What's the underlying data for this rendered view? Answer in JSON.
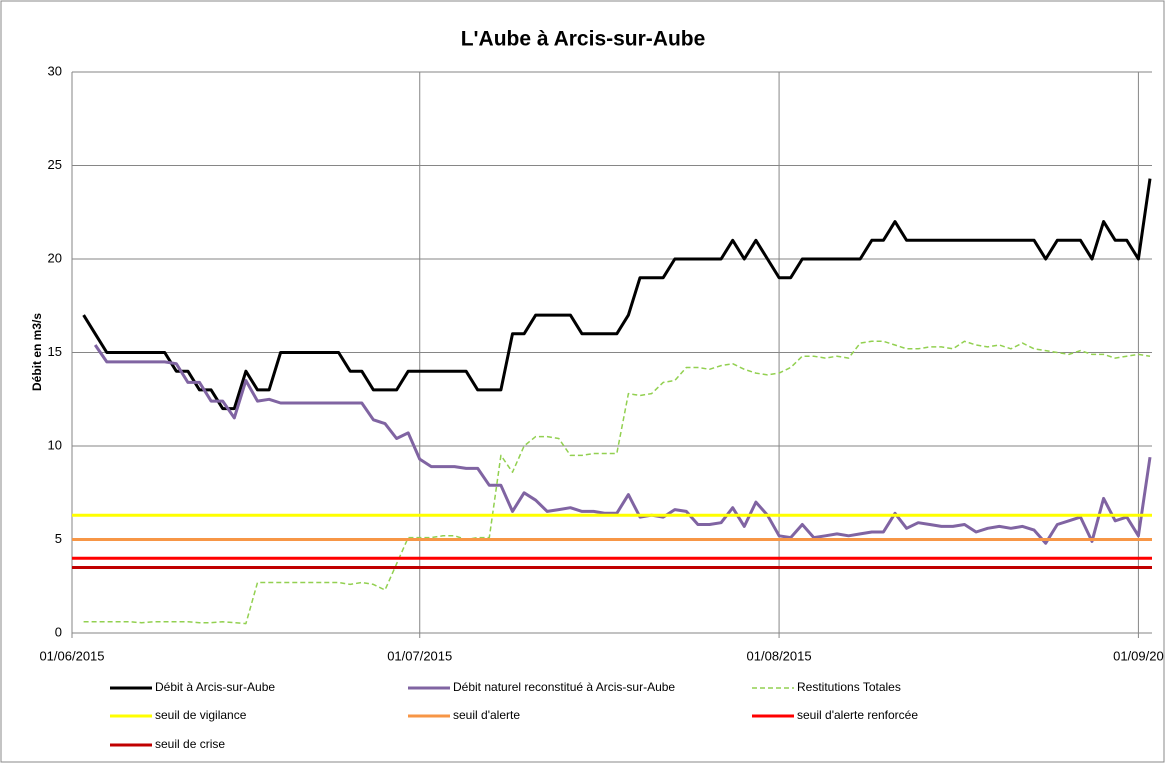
{
  "chart_data": {
    "type": "line",
    "title": "L'Aube à Arcis-sur-Aube",
    "y_label": "Débit en m3/s",
    "x": [
      "2015-06-01",
      "2015-06-02",
      "2015-06-03",
      "2015-06-04",
      "2015-06-05",
      "2015-06-06",
      "2015-06-07",
      "2015-06-08",
      "2015-06-09",
      "2015-06-10",
      "2015-06-11",
      "2015-06-12",
      "2015-06-13",
      "2015-06-14",
      "2015-06-15",
      "2015-06-16",
      "2015-06-17",
      "2015-06-18",
      "2015-06-19",
      "2015-06-20",
      "2015-06-21",
      "2015-06-22",
      "2015-06-23",
      "2015-06-24",
      "2015-06-25",
      "2015-06-26",
      "2015-06-27",
      "2015-06-28",
      "2015-06-29",
      "2015-06-30",
      "2015-07-01",
      "2015-07-02",
      "2015-07-03",
      "2015-07-04",
      "2015-07-05",
      "2015-07-06",
      "2015-07-07",
      "2015-07-08",
      "2015-07-09",
      "2015-07-10",
      "2015-07-11",
      "2015-07-12",
      "2015-07-13",
      "2015-07-14",
      "2015-07-15",
      "2015-07-16",
      "2015-07-17",
      "2015-07-18",
      "2015-07-19",
      "2015-07-20",
      "2015-07-21",
      "2015-07-22",
      "2015-07-23",
      "2015-07-24",
      "2015-07-25",
      "2015-07-26",
      "2015-07-27",
      "2015-07-28",
      "2015-07-29",
      "2015-07-30",
      "2015-07-31",
      "2015-08-01",
      "2015-08-02",
      "2015-08-03",
      "2015-08-04",
      "2015-08-05",
      "2015-08-06",
      "2015-08-07",
      "2015-08-08",
      "2015-08-09",
      "2015-08-10",
      "2015-08-11",
      "2015-08-12",
      "2015-08-13",
      "2015-08-14",
      "2015-08-15",
      "2015-08-16",
      "2015-08-17",
      "2015-08-18",
      "2015-08-19",
      "2015-08-20",
      "2015-08-21",
      "2015-08-22",
      "2015-08-23",
      "2015-08-24",
      "2015-08-25",
      "2015-08-26",
      "2015-08-27",
      "2015-08-28",
      "2015-08-29",
      "2015-08-30",
      "2015-08-31",
      "2015-09-01",
      "2015-09-02"
    ],
    "series": [
      {
        "name": "Débit à Arcis-sur-Aube",
        "color": "#000000",
        "values": [
          null,
          17,
          16,
          15,
          15,
          15,
          15,
          15,
          15,
          14,
          14,
          13,
          13,
          12,
          12,
          14,
          13,
          13,
          15,
          15,
          15,
          15,
          15,
          15,
          14,
          14,
          13,
          13,
          13,
          14,
          14,
          14,
          14,
          14,
          14,
          13,
          13,
          13,
          16,
          16,
          17,
          17,
          17,
          17,
          16,
          16,
          16,
          16,
          17,
          19,
          19,
          19,
          20,
          20,
          20,
          20,
          20,
          21,
          20,
          21,
          20,
          19,
          19,
          20,
          20,
          20,
          20,
          20,
          20,
          21,
          21,
          22,
          21,
          21,
          21,
          21,
          21,
          21,
          21,
          21,
          21,
          21,
          21,
          21,
          20,
          21,
          21,
          21,
          20,
          22,
          21,
          21,
          20,
          24.3
        ]
      },
      {
        "name": "Débit naturel  reconstitué à Arcis-sur-Aube",
        "color": "#8064a2",
        "values": [
          null,
          null,
          15.4,
          14.5,
          14.5,
          14.5,
          14.5,
          14.5,
          14.5,
          14.4,
          13.4,
          13.4,
          12.4,
          12.4,
          11.5,
          13.5,
          12.4,
          12.5,
          12.3,
          12.3,
          12.3,
          12.3,
          12.3,
          12.3,
          12.3,
          12.3,
          11.4,
          11.2,
          10.4,
          10.7,
          9.3,
          8.9,
          8.9,
          8.9,
          8.8,
          8.8,
          7.9,
          7.9,
          6.5,
          7.5,
          7.1,
          6.5,
          6.6,
          6.7,
          6.5,
          6.5,
          6.4,
          6.4,
          7.4,
          6.2,
          6.3,
          6.2,
          6.6,
          6.5,
          5.8,
          5.8,
          5.9,
          6.7,
          5.7,
          7.0,
          6.3,
          5.2,
          5.1,
          5.8,
          5.1,
          5.2,
          5.3,
          5.2,
          5.3,
          5.4,
          5.4,
          6.4,
          5.6,
          5.9,
          5.8,
          5.7,
          5.7,
          5.8,
          5.4,
          5.6,
          5.7,
          5.6,
          5.7,
          5.5,
          4.8,
          5.8,
          6.0,
          6.2,
          4.9,
          7.2,
          6.0,
          6.2,
          5.2,
          9.4
        ]
      },
      {
        "name": "Restitutions Totales",
        "color": "#92d050",
        "dashed": true,
        "values": [
          null,
          0.6,
          0.6,
          0.6,
          0.6,
          0.6,
          0.55,
          0.6,
          0.6,
          0.6,
          0.6,
          0.55,
          0.55,
          0.6,
          0.55,
          0.5,
          2.7,
          2.7,
          2.7,
          2.7,
          2.7,
          2.7,
          2.7,
          2.7,
          2.6,
          2.7,
          2.6,
          2.3,
          3.7,
          5.1,
          5.1,
          5.1,
          5.2,
          5.2,
          5.0,
          5.1,
          5.1,
          9.5,
          8.6,
          10.0,
          10.5,
          10.5,
          10.4,
          9.5,
          9.5,
          9.6,
          9.6,
          9.6,
          12.8,
          12.7,
          12.8,
          13.4,
          13.5,
          14.2,
          14.2,
          14.1,
          14.3,
          14.4,
          14.1,
          13.9,
          13.8,
          13.9,
          14.2,
          14.8,
          14.8,
          14.7,
          14.8,
          14.7,
          15.5,
          15.6,
          15.6,
          15.4,
          15.2,
          15.2,
          15.3,
          15.3,
          15.2,
          15.6,
          15.4,
          15.3,
          15.4,
          15.2,
          15.5,
          15.2,
          15.1,
          15.0,
          14.9,
          15.1,
          14.9,
          14.9,
          14.7,
          14.8,
          14.9,
          14.8
        ]
      },
      {
        "name": "seuil de vigilance",
        "color": "#ffff00",
        "value": 6.3
      },
      {
        "name": "seuil d'alerte",
        "color": "#f79646",
        "value": 5
      },
      {
        "name": "seuil d'alerte renforcée",
        "color": "#ff0000",
        "value": 4
      },
      {
        "name": "seuil de crise",
        "color": "#c00000",
        "value": 3.5
      }
    ],
    "xlim": [
      "2015-06-01",
      "2015-09-02"
    ],
    "xticks": [
      {
        "value": "2015-06-01",
        "label": "01/06/2015"
      },
      {
        "value": "2015-07-01",
        "label": "01/07/2015"
      },
      {
        "value": "2015-08-01",
        "label": "01/08/2015"
      },
      {
        "value": "2015-09-01",
        "label": "01/09/20"
      }
    ],
    "ylim": [
      0,
      30
    ],
    "yticks": [
      0,
      5,
      10,
      15,
      20,
      25,
      30
    ],
    "grid": true
  }
}
